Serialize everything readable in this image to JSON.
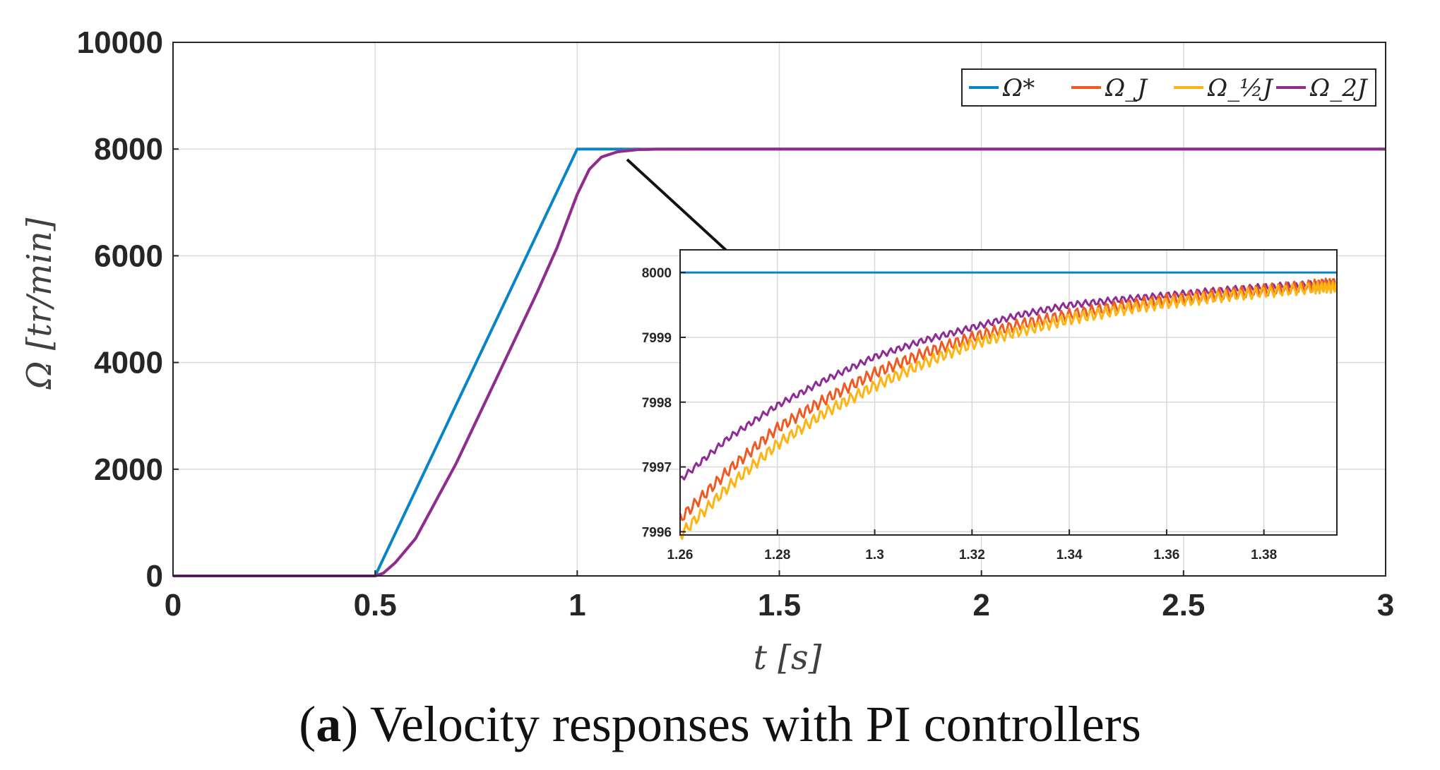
{
  "caption": {
    "letter": "a",
    "text": "Velocity responses with PI controllers"
  },
  "colors": {
    "ref": "#0a84c8",
    "j": "#f05a22",
    "half_j": "#ffb413",
    "two_j": "#8e2c95",
    "grid": "#d9d9d9",
    "axis": "#262626"
  },
  "chart_data": [
    {
      "type": "line",
      "role": "main",
      "xlabel": "t [s]",
      "ylabel": "Ω [tr/min]",
      "xlim": [
        0,
        3
      ],
      "ylim": [
        0,
        10000
      ],
      "xticks": [
        "0",
        "0.5",
        "1",
        "1.5",
        "2",
        "2.5",
        "3"
      ],
      "yticks": [
        "0",
        "2000",
        "4000",
        "6000",
        "8000",
        "10000"
      ],
      "grid": true,
      "legend": "top-right",
      "series": [
        {
          "name": "Ω*",
          "key": "ref",
          "x": [
            0,
            0.5,
            1.0,
            3.0
          ],
          "y": [
            0,
            0,
            8000,
            8000
          ]
        },
        {
          "name": "Ω_J",
          "key": "j",
          "x": [
            0,
            0.5,
            0.52,
            0.55,
            0.6,
            0.7,
            0.8,
            0.9,
            0.95,
            1.0,
            1.03,
            1.06,
            1.1,
            1.15,
            1.2,
            1.3,
            3.0
          ],
          "y": [
            0,
            0,
            50,
            250,
            700,
            2100,
            3700,
            5300,
            6150,
            7150,
            7620,
            7850,
            7950,
            7990,
            7998,
            8000,
            8000
          ]
        },
        {
          "name": "Ω_½J",
          "key": "half_j",
          "x": [
            0,
            0.5,
            0.52,
            0.55,
            0.6,
            0.7,
            0.8,
            0.9,
            0.95,
            1.0,
            1.03,
            1.06,
            1.1,
            1.15,
            1.2,
            1.3,
            3.0
          ],
          "y": [
            0,
            0,
            50,
            250,
            700,
            2100,
            3700,
            5300,
            6150,
            7150,
            7620,
            7850,
            7950,
            7990,
            7998,
            8000,
            8000
          ]
        },
        {
          "name": "Ω_2J",
          "key": "two_j",
          "x": [
            0,
            0.5,
            0.52,
            0.55,
            0.6,
            0.7,
            0.8,
            0.9,
            0.95,
            1.0,
            1.03,
            1.06,
            1.1,
            1.15,
            1.2,
            1.3,
            3.0
          ],
          "y": [
            0,
            0,
            50,
            250,
            700,
            2100,
            3700,
            5300,
            6150,
            7150,
            7620,
            7850,
            7950,
            7990,
            7998,
            8000,
            8000
          ]
        }
      ]
    },
    {
      "type": "line",
      "role": "inset",
      "xlim": [
        1.26,
        1.395
      ],
      "ylim": [
        7995.95,
        8000.35
      ],
      "xticks": [
        "1.26",
        "1.28",
        "1.3",
        "1.32",
        "1.34",
        "1.36",
        "1.38"
      ],
      "yticks": [
        "7996",
        "7997",
        "7998",
        "7999",
        "8000"
      ],
      "grid": true,
      "series": [
        {
          "key": "ref",
          "x": [
            1.26,
            1.395
          ],
          "y": [
            8000.0,
            8000.0
          ]
        },
        {
          "key": "two_j",
          "x": [
            1.26,
            1.27,
            1.28,
            1.29,
            1.3,
            1.31,
            1.32,
            1.33,
            1.34,
            1.35,
            1.36,
            1.37,
            1.38,
            1.39,
            1.395
          ],
          "y": [
            7996.8,
            7997.45,
            7997.95,
            7998.35,
            7998.7,
            7998.95,
            7999.15,
            7999.35,
            7999.5,
            7999.58,
            7999.65,
            7999.72,
            7999.78,
            7999.82,
            7999.85
          ]
        },
        {
          "key": "j",
          "x": [
            1.26,
            1.27,
            1.28,
            1.29,
            1.3,
            1.31,
            1.32,
            1.33,
            1.34,
            1.35,
            1.36,
            1.37,
            1.38,
            1.39,
            1.395
          ],
          "y": [
            7996.2,
            7996.95,
            7997.6,
            7998.05,
            7998.45,
            7998.75,
            7999.0,
            7999.2,
            7999.35,
            7999.48,
            7999.58,
            7999.66,
            7999.73,
            7999.8,
            7999.83
          ]
        },
        {
          "key": "half_j",
          "x": [
            1.26,
            1.27,
            1.28,
            1.29,
            1.3,
            1.31,
            1.32,
            1.33,
            1.34,
            1.35,
            1.36,
            1.37,
            1.38,
            1.39,
            1.395
          ],
          "y": [
            7995.95,
            7996.7,
            7997.35,
            7997.85,
            7998.25,
            7998.6,
            7998.9,
            7999.1,
            7999.28,
            7999.42,
            7999.53,
            7999.62,
            7999.7,
            7999.76,
            7999.78
          ]
        }
      ]
    }
  ]
}
